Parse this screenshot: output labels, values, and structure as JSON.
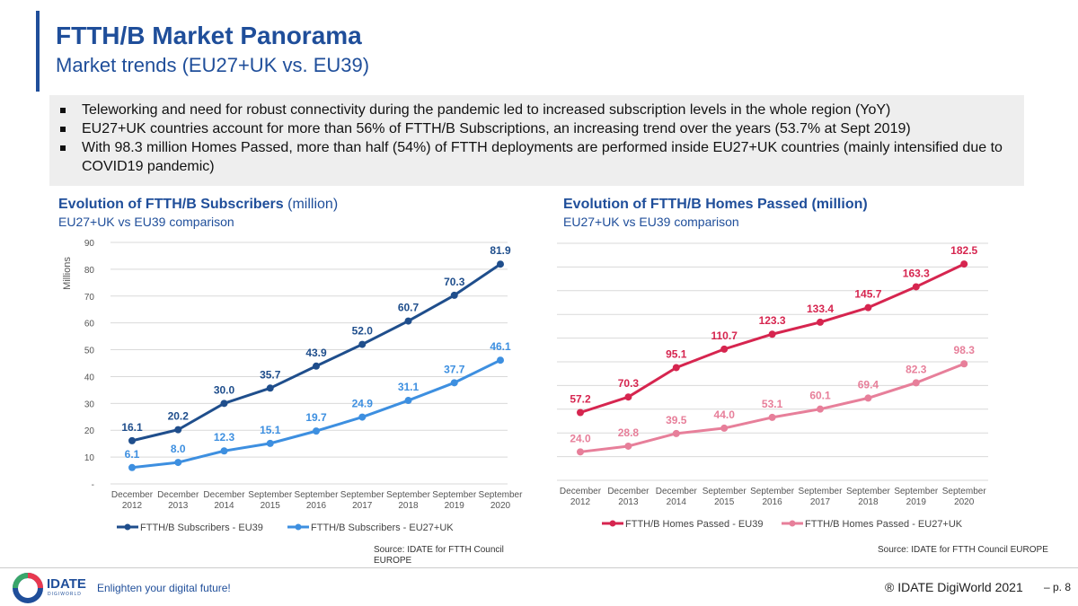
{
  "header": {
    "title": "FTTH/B Market Panorama",
    "subtitle": "Market trends (EU27+UK vs. EU39)",
    "accent_color": "#1f4e9a"
  },
  "bullets": [
    "Teleworking and need for robust connectivity during the pandemic led to increased subscription levels in the whole region (YoY)",
    "EU27+UK countries account for more than 56% of FTTH/B Subscriptions, an increasing trend over the years (53.7% at Sept 2019)",
    "With 98.3 million Homes Passed, more than half (54%) of FTTH deployments are performed inside EU27+UK countries (mainly intensified due to COVID19 pandemic)"
  ],
  "chart_data": [
    {
      "type": "line",
      "title_bold": "Evolution of FTTH/B Subscribers",
      "title_light": "(million)",
      "subtitle": "EU27+UK vs EU39 comparison",
      "ylabel": "Millions",
      "ylim": [
        0,
        90
      ],
      "yticks": [
        "-",
        "10",
        "20",
        "30",
        "40",
        "50",
        "60",
        "70",
        "80",
        "90"
      ],
      "grid": true,
      "legend": "bottom",
      "categories": [
        [
          "December",
          "2012"
        ],
        [
          "December",
          "2013"
        ],
        [
          "December",
          "2014"
        ],
        [
          "September",
          "2015"
        ],
        [
          "September",
          "2016"
        ],
        [
          "September",
          "2017"
        ],
        [
          "September",
          "2018"
        ],
        [
          "September",
          "2019"
        ],
        [
          "September",
          "2020"
        ]
      ],
      "series": [
        {
          "name": "FTTH/B Subscribers - EU39",
          "color": "#1f4e8c",
          "values": [
            16.1,
            20.2,
            30.0,
            35.7,
            43.9,
            52.0,
            60.7,
            70.3,
            81.9
          ],
          "labels": [
            "16.1",
            "20.2",
            "30.0",
            "35.7",
            "43.9",
            "52.0",
            "60.7",
            "70.3",
            "81.9"
          ]
        },
        {
          "name": "FTTH/B Subscribers - EU27+UK",
          "color": "#3d8fe0",
          "values": [
            6.1,
            8.0,
            12.3,
            15.1,
            19.7,
            24.9,
            31.1,
            37.7,
            46.1
          ],
          "labels": [
            "6.1",
            "8.0",
            "12.3",
            "15.1",
            "19.7",
            "24.9",
            "31.1",
            "37.7",
            "46.1"
          ]
        }
      ],
      "source": [
        "Source: IDATE for FTTH Council",
        "EUROPE"
      ]
    },
    {
      "type": "line",
      "title_bold": "Evolution of FTTH/B Homes Passed (million)",
      "title_light": "",
      "subtitle": "EU27+UK vs EU39 comparison",
      "ylim": [
        0,
        200
      ],
      "grid": true,
      "legend": "bottom",
      "categories": [
        [
          "December",
          "2012"
        ],
        [
          "December",
          "2013"
        ],
        [
          "December",
          "2014"
        ],
        [
          "September",
          "2015"
        ],
        [
          "September",
          "2016"
        ],
        [
          "September",
          "2017"
        ],
        [
          "September",
          "2018"
        ],
        [
          "September",
          "2019"
        ],
        [
          "September",
          "2020"
        ]
      ],
      "series": [
        {
          "name": "FTTH/B Homes Passed - EU39",
          "color": "#d6254f",
          "values": [
            57.2,
            70.3,
            95.1,
            110.7,
            123.3,
            133.4,
            145.7,
            163.3,
            182.5
          ],
          "labels": [
            "57.2",
            "70.3",
            "95.1",
            "110.7",
            "123.3",
            "133.4",
            "145.7",
            "163.3",
            "182.5"
          ]
        },
        {
          "name": "FTTH/B Homes Passed - EU27+UK",
          "color": "#e77f9a",
          "values": [
            24.0,
            28.8,
            39.5,
            44.0,
            53.1,
            60.1,
            69.4,
            82.3,
            98.3
          ],
          "labels": [
            "24.0",
            "28.8",
            "39.5",
            "44.0",
            "53.1",
            "60.1",
            "69.4",
            "82.3",
            "98.3"
          ]
        }
      ],
      "source": [
        "Source: IDATE for FTTH Council EUROPE"
      ]
    }
  ],
  "footer": {
    "logo_text": "IDATE",
    "logo_sub": "DIGIWORLD",
    "tagline": "Enlighten your digital future!",
    "copyright": "® IDATE DigiWorld 2021",
    "page": "– p. 8"
  }
}
